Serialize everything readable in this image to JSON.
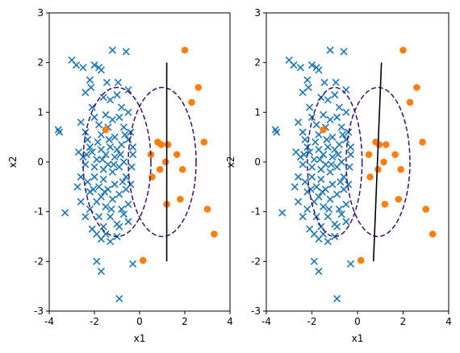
{
  "colors": {
    "class0": "#1f77b4",
    "class1": "#ff7f0e",
    "ellipse": "#3b0f70",
    "boundary": "#000000"
  },
  "markers": {
    "class0": "x-marker-icon",
    "class1": "circle-marker-icon"
  },
  "chart_data": [
    {
      "type": "scatter",
      "title": "",
      "xlabel": "x1",
      "ylabel": "x2",
      "xlim": [
        -4,
        4
      ],
      "ylim": [
        -3,
        3
      ],
      "xticks": [
        "-4",
        "-2",
        "0",
        "2",
        "4"
      ],
      "yticks": [
        "-3",
        "-2",
        "-1",
        "0",
        "1",
        "2",
        "3"
      ],
      "grid": false,
      "series": [
        {
          "marker": "x",
          "points": [
            [
              -3.6,
              0.65
            ],
            [
              -3.55,
              0.6
            ],
            [
              -3.3,
              -1.02
            ],
            [
              -3.0,
              2.05
            ],
            [
              -2.8,
              1.95
            ],
            [
              -2.5,
              1.9
            ],
            [
              -2.2,
              1.65
            ],
            [
              -2.0,
              1.95
            ],
            [
              -1.8,
              1.9
            ],
            [
              -1.7,
              1.85
            ],
            [
              -1.2,
              2.25
            ],
            [
              -0.6,
              2.22
            ],
            [
              -0.5,
              1.45
            ],
            [
              -2.4,
              1.4
            ],
            [
              -2.1,
              1.1
            ],
            [
              -1.6,
              1.3
            ],
            [
              -1.3,
              1.25
            ],
            [
              -1.0,
              1.35
            ],
            [
              -0.8,
              1.1
            ],
            [
              -2.6,
              0.8
            ],
            [
              -2.4,
              0.6
            ],
            [
              -2.3,
              0.45
            ],
            [
              -2.2,
              0.3
            ],
            [
              -2.0,
              0.9
            ],
            [
              -1.8,
              0.75
            ],
            [
              -1.7,
              0.55
            ],
            [
              -1.5,
              0.95
            ],
            [
              -1.4,
              0.7
            ],
            [
              -1.2,
              0.85
            ],
            [
              -1.1,
              0.5
            ],
            [
              -0.9,
              0.9
            ],
            [
              -0.7,
              0.7
            ],
            [
              -0.5,
              1.0
            ],
            [
              -0.4,
              0.6
            ],
            [
              -0.3,
              0.3
            ],
            [
              -2.5,
              0.1
            ],
            [
              -2.4,
              -0.05
            ],
            [
              -2.1,
              0.2
            ],
            [
              -2.0,
              -0.1
            ],
            [
              -1.9,
              0.05
            ],
            [
              -1.7,
              0.25
            ],
            [
              -1.6,
              -0.15
            ],
            [
              -1.5,
              0.15
            ],
            [
              -1.4,
              -0.05
            ],
            [
              -1.3,
              0.3
            ],
            [
              -1.2,
              -0.2
            ],
            [
              -1.1,
              0.1
            ],
            [
              -1.0,
              0.25
            ],
            [
              -0.9,
              -0.1
            ],
            [
              -0.8,
              0.35
            ],
            [
              -0.7,
              0.0
            ],
            [
              -0.6,
              -0.3
            ],
            [
              -0.5,
              0.45
            ],
            [
              -0.4,
              -0.45
            ],
            [
              -0.3,
              0.15
            ],
            [
              -2.3,
              -0.4
            ],
            [
              -2.2,
              -0.6
            ],
            [
              -2.0,
              -0.3
            ],
            [
              -1.9,
              -0.8
            ],
            [
              -1.8,
              -0.5
            ],
            [
              -1.7,
              -0.7
            ],
            [
              -1.6,
              -0.35
            ],
            [
              -1.5,
              -0.9
            ],
            [
              -1.4,
              -0.55
            ],
            [
              -1.3,
              -1.1
            ],
            [
              -1.2,
              -0.75
            ],
            [
              -1.1,
              -0.45
            ],
            [
              -1.0,
              -1.25
            ],
            [
              -0.9,
              -0.65
            ],
            [
              -0.8,
              -0.95
            ],
            [
              -0.7,
              -1.05
            ],
            [
              -0.6,
              -0.55
            ],
            [
              -0.5,
              -0.85
            ],
            [
              -2.6,
              -0.8
            ],
            [
              -2.4,
              -1.1
            ],
            [
              -2.2,
              -0.95
            ],
            [
              -2.1,
              -1.35
            ],
            [
              -1.9,
              -1.45
            ],
            [
              -1.8,
              -1.1
            ],
            [
              -1.7,
              -1.55
            ],
            [
              -1.6,
              -1.3
            ],
            [
              -1.5,
              -1.45
            ],
            [
              -1.3,
              -1.6
            ],
            [
              -1.0,
              -1.5
            ],
            [
              -0.9,
              -1.3
            ],
            [
              -0.5,
              -1.2
            ],
            [
              -1.9,
              -2.0
            ],
            [
              -1.7,
              -2.2
            ],
            [
              -0.3,
              -2.05
            ],
            [
              -0.9,
              -2.75
            ],
            [
              -2.7,
              0.2
            ],
            [
              -2.6,
              -0.3
            ],
            [
              -1.15,
              -0.05
            ],
            [
              -1.35,
              0.45
            ],
            [
              -1.85,
              0.4
            ],
            [
              -2.05,
              -0.55
            ],
            [
              -0.75,
              -0.4
            ],
            [
              -0.35,
              -0.1
            ],
            [
              -1.45,
              1.6
            ],
            [
              -0.95,
              1.6
            ],
            [
              -2.15,
              1.5
            ],
            [
              -2.75,
              -0.5
            ],
            [
              -1.55,
              -0.6
            ],
            [
              -0.65,
              0.55
            ],
            [
              -1.25,
              -0.95
            ],
            [
              -0.85,
              0.15
            ],
            [
              -1.65,
              0.05
            ],
            [
              -2.35,
              0.15
            ]
          ]
        },
        {
          "marker": "o",
          "points": [
            [
              -1.5,
              0.65
            ],
            [
              0.15,
              -1.98
            ],
            [
              0.55,
              -0.3
            ],
            [
              0.5,
              0.15
            ],
            [
              0.8,
              0.4
            ],
            [
              0.95,
              0.35
            ],
            [
              1.25,
              0.35
            ],
            [
              0.9,
              -0.15
            ],
            [
              1.15,
              0.0
            ],
            [
              1.2,
              -0.85
            ],
            [
              1.65,
              0.15
            ],
            [
              1.9,
              -0.15
            ],
            [
              1.8,
              -0.75
            ],
            [
              2.3,
              1.2
            ],
            [
              2.6,
              1.5
            ],
            [
              2.0,
              2.25
            ],
            [
              2.85,
              0.4
            ],
            [
              3.0,
              -0.95
            ],
            [
              3.3,
              -1.45
            ]
          ]
        }
      ],
      "ellipses": [
        {
          "center": [
            -1.0,
            0.0
          ],
          "half_width": 1.5,
          "half_height": 1.5
        },
        {
          "center": [
            1.0,
            0.0
          ],
          "half_width": 1.5,
          "half_height": 1.5
        }
      ],
      "boundary": [
        [
          1.2,
          -2.0
        ],
        [
          1.2,
          2.0
        ]
      ]
    },
    {
      "type": "scatter",
      "title": "",
      "xlabel": "x1",
      "ylabel": "x2",
      "xlim": [
        -4,
        4
      ],
      "ylim": [
        -3,
        3
      ],
      "xticks": [
        "-4",
        "-2",
        "0",
        "2",
        "4"
      ],
      "yticks": [
        "-3",
        "-2",
        "-1",
        "0",
        "1",
        "2",
        "3"
      ],
      "grid": false,
      "series": [
        {
          "marker": "x",
          "points": [
            [
              -3.6,
              0.65
            ],
            [
              -3.55,
              0.6
            ],
            [
              -3.3,
              -1.02
            ],
            [
              -3.0,
              2.05
            ],
            [
              -2.8,
              1.95
            ],
            [
              -2.5,
              1.9
            ],
            [
              -2.2,
              1.65
            ],
            [
              -2.0,
              1.95
            ],
            [
              -1.8,
              1.9
            ],
            [
              -1.7,
              1.85
            ],
            [
              -1.2,
              2.25
            ],
            [
              -0.6,
              2.22
            ],
            [
              -0.5,
              1.45
            ],
            [
              -2.4,
              1.4
            ],
            [
              -2.1,
              1.1
            ],
            [
              -1.6,
              1.3
            ],
            [
              -1.3,
              1.25
            ],
            [
              -1.0,
              1.35
            ],
            [
              -0.8,
              1.1
            ],
            [
              -2.6,
              0.8
            ],
            [
              -2.4,
              0.6
            ],
            [
              -2.3,
              0.45
            ],
            [
              -2.2,
              0.3
            ],
            [
              -2.0,
              0.9
            ],
            [
              -1.8,
              0.75
            ],
            [
              -1.7,
              0.55
            ],
            [
              -1.5,
              0.95
            ],
            [
              -1.4,
              0.7
            ],
            [
              -1.2,
              0.85
            ],
            [
              -1.1,
              0.5
            ],
            [
              -0.9,
              0.9
            ],
            [
              -0.7,
              0.7
            ],
            [
              -0.5,
              1.0
            ],
            [
              -0.4,
              0.6
            ],
            [
              -0.3,
              0.3
            ],
            [
              -2.5,
              0.1
            ],
            [
              -2.4,
              -0.05
            ],
            [
              -2.1,
              0.2
            ],
            [
              -2.0,
              -0.1
            ],
            [
              -1.9,
              0.05
            ],
            [
              -1.7,
              0.25
            ],
            [
              -1.6,
              -0.15
            ],
            [
              -1.5,
              0.15
            ],
            [
              -1.4,
              -0.05
            ],
            [
              -1.3,
              0.3
            ],
            [
              -1.2,
              -0.2
            ],
            [
              -1.1,
              0.1
            ],
            [
              -1.0,
              0.25
            ],
            [
              -0.9,
              -0.1
            ],
            [
              -0.8,
              0.35
            ],
            [
              -0.7,
              0.0
            ],
            [
              -0.6,
              -0.3
            ],
            [
              -0.5,
              0.45
            ],
            [
              -0.4,
              -0.45
            ],
            [
              -0.3,
              0.15
            ],
            [
              -2.3,
              -0.4
            ],
            [
              -2.2,
              -0.6
            ],
            [
              -2.0,
              -0.3
            ],
            [
              -1.9,
              -0.8
            ],
            [
              -1.8,
              -0.5
            ],
            [
              -1.7,
              -0.7
            ],
            [
              -1.6,
              -0.35
            ],
            [
              -1.5,
              -0.9
            ],
            [
              -1.4,
              -0.55
            ],
            [
              -1.3,
              -1.1
            ],
            [
              -1.2,
              -0.75
            ],
            [
              -1.1,
              -0.45
            ],
            [
              -1.0,
              -1.25
            ],
            [
              -0.9,
              -0.65
            ],
            [
              -0.8,
              -0.95
            ],
            [
              -0.7,
              -1.05
            ],
            [
              -0.6,
              -0.55
            ],
            [
              -0.5,
              -0.85
            ],
            [
              -2.6,
              -0.8
            ],
            [
              -2.4,
              -1.1
            ],
            [
              -2.2,
              -0.95
            ],
            [
              -2.1,
              -1.35
            ],
            [
              -1.9,
              -1.45
            ],
            [
              -1.8,
              -1.1
            ],
            [
              -1.7,
              -1.55
            ],
            [
              -1.6,
              -1.3
            ],
            [
              -1.5,
              -1.45
            ],
            [
              -1.3,
              -1.6
            ],
            [
              -1.0,
              -1.5
            ],
            [
              -0.9,
              -1.3
            ],
            [
              -0.5,
              -1.2
            ],
            [
              -1.9,
              -2.0
            ],
            [
              -1.7,
              -2.2
            ],
            [
              -0.3,
              -2.05
            ],
            [
              -0.9,
              -2.75
            ],
            [
              -2.7,
              0.2
            ],
            [
              -2.6,
              -0.3
            ],
            [
              -1.15,
              -0.05
            ],
            [
              -1.35,
              0.45
            ],
            [
              -1.85,
              0.4
            ],
            [
              -2.05,
              -0.55
            ],
            [
              -0.75,
              -0.4
            ],
            [
              -0.35,
              -0.1
            ],
            [
              -1.45,
              1.6
            ],
            [
              -0.95,
              1.6
            ],
            [
              -2.15,
              1.5
            ],
            [
              -2.75,
              -0.5
            ],
            [
              -1.55,
              -0.6
            ],
            [
              -0.65,
              0.55
            ],
            [
              -1.25,
              -0.95
            ],
            [
              -0.85,
              0.15
            ],
            [
              -1.65,
              0.05
            ],
            [
              -2.35,
              0.15
            ]
          ]
        },
        {
          "marker": "o",
          "points": [
            [
              -1.5,
              0.65
            ],
            [
              0.15,
              -1.98
            ],
            [
              0.55,
              -0.3
            ],
            [
              0.5,
              0.15
            ],
            [
              0.8,
              0.4
            ],
            [
              0.95,
              0.35
            ],
            [
              1.25,
              0.35
            ],
            [
              0.9,
              -0.15
            ],
            [
              1.15,
              0.0
            ],
            [
              1.2,
              -0.85
            ],
            [
              1.65,
              0.15
            ],
            [
              1.9,
              -0.15
            ],
            [
              1.8,
              -0.75
            ],
            [
              2.3,
              1.2
            ],
            [
              2.6,
              1.5
            ],
            [
              2.0,
              2.25
            ],
            [
              2.85,
              0.4
            ],
            [
              3.0,
              -0.95
            ],
            [
              3.3,
              -1.45
            ]
          ]
        }
      ],
      "ellipses": [
        {
          "center": [
            -1.0,
            0.0
          ],
          "half_width": 1.2,
          "half_height": 1.5
        },
        {
          "center": [
            0.9,
            0.0
          ],
          "half_width": 1.4,
          "half_height": 1.5
        }
      ],
      "boundary": [
        [
          0.7,
          -2.0
        ],
        [
          1.05,
          2.0
        ]
      ]
    }
  ]
}
